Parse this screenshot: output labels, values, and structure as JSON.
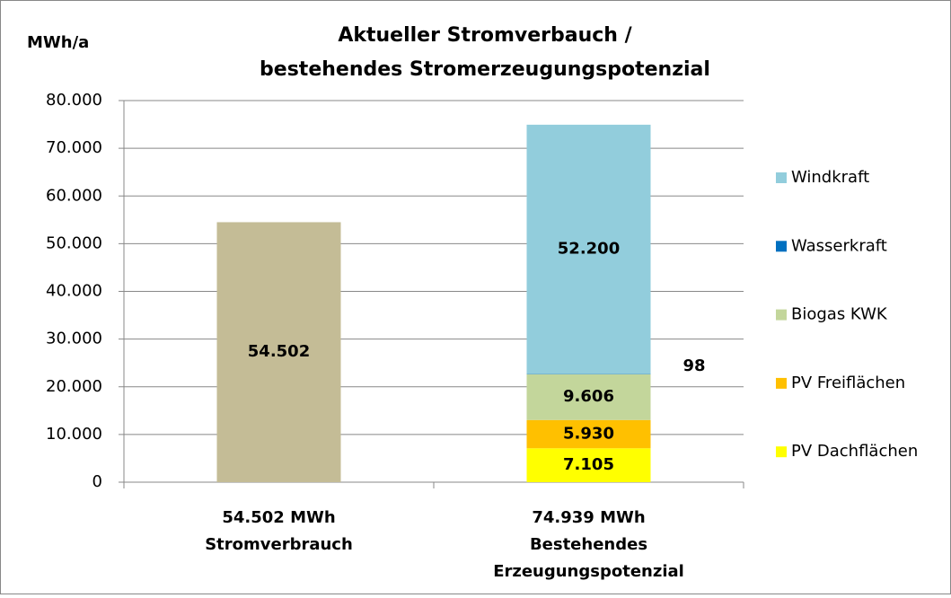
{
  "chart_data": {
    "type": "stacked_bar",
    "title": [
      "Aktueller Stromverbauch /",
      "bestehendes Stromerzeugungspotenzial"
    ],
    "y_axis_label": "MWh/a",
    "categories": [
      [
        "54.502 MWh",
        "Stromverbrauch"
      ],
      [
        "74.939 MWh",
        "Bestehendes",
        "Erzeugungspotenzial"
      ]
    ],
    "series": [
      {
        "name": null,
        "color": "#c4bc96",
        "values": [
          54502,
          null
        ],
        "value_labels": [
          "54.502",
          null
        ]
      },
      {
        "name": "PV Dachflächen",
        "color": "#ffff00",
        "values": [
          null,
          7105
        ],
        "value_labels": [
          null,
          "7.105"
        ]
      },
      {
        "name": "PV Freiflächen",
        "color": "#ffc000",
        "values": [
          null,
          5930
        ],
        "value_labels": [
          null,
          "5.930"
        ]
      },
      {
        "name": "Biogas KWK",
        "color": "#c3d69b",
        "values": [
          null,
          9606
        ],
        "value_labels": [
          null,
          "9.606"
        ]
      },
      {
        "name": "Wasserkraft",
        "color": "#0070c0",
        "values": [
          null,
          98
        ]
      },
      {
        "name": "Windkraft",
        "color": "#92cddc",
        "values": [
          null,
          52200
        ],
        "value_labels": [
          null,
          "52.200"
        ]
      }
    ],
    "ylim": [
      0,
      80000
    ],
    "yticks": [
      0,
      {
        "value": 10000,
        "label": "10.000"
      },
      {
        "value": 20000,
        "label": "20.000"
      },
      {
        "value": 30000,
        "label": "30.000"
      },
      {
        "value": 40000,
        "label": "40.000"
      },
      {
        "value": 50000,
        "label": "50.000"
      },
      {
        "value": 60000,
        "label": "60.000"
      },
      {
        "value": 70000,
        "label": "70.000"
      },
      {
        "value": 80000,
        "label": "80.000"
      }
    ],
    "grid": true,
    "legend": "right"
  }
}
